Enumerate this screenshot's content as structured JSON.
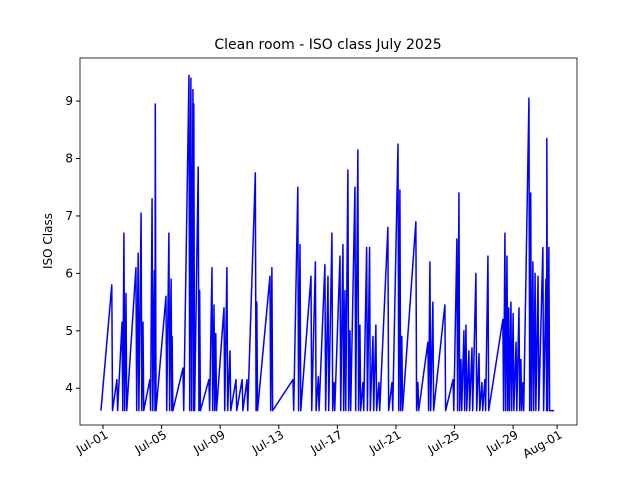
{
  "chart_data": {
    "type": "line",
    "title": "Clean room - ISO class July 2025",
    "y_label": "ISO Class",
    "xlim": [
      -1.57,
      32.36
    ],
    "ylim": [
      3.36,
      9.75
    ],
    "xticks": [
      {
        "value": 0,
        "label": "Jul-01"
      },
      {
        "value": 4,
        "label": "Jul-05"
      },
      {
        "value": 8,
        "label": "Jul-09"
      },
      {
        "value": 12,
        "label": "Jul-13"
      },
      {
        "value": 16,
        "label": "Jul-17"
      },
      {
        "value": 20,
        "label": "Jul-21"
      },
      {
        "value": 24,
        "label": "Jul-25"
      },
      {
        "value": 28,
        "label": "Jul-29"
      },
      {
        "value": 31,
        "label": "Aug-01"
      }
    ],
    "yticks": [
      4,
      5,
      6,
      7,
      8,
      9
    ],
    "grid": false,
    "x": [
      -0.14,
      0.6,
      0.65,
      0.95,
      1.0,
      1.3,
      1.35,
      1.43,
      1.48,
      1.57,
      1.62,
      2.25,
      2.3,
      2.4,
      2.45,
      2.6,
      2.65,
      2.73,
      2.78,
      3.2,
      3.25,
      3.35,
      3.4,
      3.5,
      3.55,
      3.57,
      3.62,
      4.3,
      4.35,
      4.5,
      4.55,
      4.65,
      4.7,
      4.72,
      4.77,
      5.46,
      5.51,
      5.87,
      5.92,
      6.0,
      6.05,
      6.14,
      6.19,
      6.2,
      6.25,
      6.5,
      6.55,
      6.6,
      6.65,
      7.23,
      7.28,
      7.44,
      7.49,
      7.58,
      7.63,
      7.7,
      7.75,
      8.26,
      8.31,
      8.46,
      8.51,
      8.67,
      8.72,
      9.08,
      9.13,
      9.5,
      9.55,
      9.83,
      9.88,
      10.4,
      10.45,
      10.5,
      10.55,
      11.4,
      11.45,
      11.53,
      11.58,
      12.97,
      13.02,
      13.3,
      13.35,
      13.45,
      13.5,
      14.2,
      14.25,
      14.5,
      14.55,
      14.7,
      14.75,
      15.15,
      15.2,
      15.36,
      15.41,
      15.63,
      15.68,
      15.77,
      15.82,
      16.18,
      16.23,
      16.38,
      16.43,
      16.52,
      16.57,
      16.72,
      16.77,
      16.86,
      16.91,
      17.2,
      17.25,
      17.4,
      17.45,
      17.54,
      17.59,
      17.75,
      17.8,
      18.0,
      18.05,
      18.2,
      18.25,
      18.43,
      18.48,
      18.63,
      18.68,
      18.84,
      18.89,
      19.45,
      19.5,
      19.73,
      19.78,
      20.14,
      20.19,
      20.27,
      20.32,
      20.4,
      20.45,
      21.36,
      21.41,
      21.5,
      21.55,
      22.18,
      22.23,
      22.32,
      22.37,
      22.52,
      22.57,
      23.34,
      23.39,
      23.9,
      23.95,
      24.16,
      24.21,
      24.3,
      24.35,
      24.44,
      24.49,
      24.64,
      24.69,
      24.78,
      24.83,
      24.98,
      25.03,
      25.19,
      25.24,
      25.46,
      25.51,
      25.67,
      25.72,
      25.87,
      25.92,
      26.07,
      26.12,
      26.28,
      26.33,
      27.3,
      27.35,
      27.44,
      27.49,
      27.58,
      27.63,
      27.7,
      27.75,
      27.85,
      27.9,
      28.0,
      28.05,
      28.2,
      28.25,
      28.4,
      28.45,
      28.53,
      28.58,
      28.67,
      28.72,
      29.08,
      29.13,
      29.2,
      29.25,
      29.35,
      29.4,
      29.5,
      29.55,
      29.7,
      29.75,
      30.03,
      30.08,
      30.24,
      30.29,
      30.3,
      30.35,
      30.44,
      30.49,
      30.8
    ],
    "series": [
      {
        "name": "ISO class",
        "color": "#0000ff",
        "values": [
          3.61,
          5.8,
          3.61,
          4.15,
          3.61,
          5.15,
          3.61,
          6.7,
          3.61,
          5.65,
          3.61,
          6.1,
          3.61,
          6.35,
          3.61,
          7.05,
          3.61,
          5.15,
          3.61,
          4.15,
          3.61,
          7.3,
          3.61,
          6.05,
          3.61,
          8.95,
          3.61,
          5.6,
          3.61,
          6.7,
          3.61,
          5.9,
          3.61,
          4.9,
          3.61,
          4.35,
          3.61,
          9.45,
          3.61,
          9.4,
          3.61,
          9.2,
          3.61,
          8.95,
          3.61,
          7.85,
          3.61,
          5.7,
          3.61,
          4.15,
          3.61,
          6.1,
          3.61,
          5.45,
          3.61,
          4.95,
          3.61,
          5.4,
          3.61,
          6.1,
          3.61,
          4.65,
          3.61,
          4.15,
          3.61,
          4.15,
          3.61,
          4.15,
          3.61,
          7.75,
          3.61,
          5.5,
          3.61,
          5.95,
          3.61,
          6.1,
          3.61,
          4.15,
          3.61,
          7.5,
          3.61,
          6.5,
          3.61,
          5.95,
          3.61,
          6.2,
          3.61,
          4.2,
          3.61,
          6.15,
          3.61,
          5.95,
          3.61,
          6.7,
          3.61,
          4.1,
          3.61,
          6.3,
          3.61,
          6.5,
          3.61,
          5.7,
          3.61,
          7.8,
          3.61,
          5.0,
          3.61,
          7.5,
          3.61,
          8.15,
          3.61,
          5.1,
          3.61,
          4.1,
          3.61,
          6.45,
          3.61,
          6.45,
          3.61,
          4.9,
          3.61,
          5.1,
          3.61,
          4.1,
          3.61,
          6.8,
          3.61,
          4.1,
          3.61,
          8.25,
          3.61,
          7.45,
          3.61,
          4.9,
          3.61,
          6.9,
          3.61,
          4.1,
          3.61,
          4.8,
          3.61,
          6.2,
          3.61,
          5.5,
          3.61,
          5.45,
          3.61,
          4.15,
          3.61,
          6.6,
          3.61,
          7.4,
          3.61,
          4.5,
          3.61,
          5.0,
          3.61,
          5.1,
          3.61,
          4.65,
          3.61,
          4.7,
          3.61,
          6.0,
          3.61,
          4.6,
          3.61,
          4.1,
          3.61,
          4.15,
          3.61,
          6.3,
          3.61,
          5.2,
          3.61,
          6.7,
          3.61,
          6.3,
          3.61,
          5.4,
          3.61,
          5.5,
          3.61,
          5.3,
          3.61,
          4.8,
          3.61,
          5.4,
          3.61,
          4.5,
          3.61,
          4.1,
          3.61,
          9.05,
          3.61,
          7.4,
          3.61,
          6.2,
          3.61,
          6.0,
          3.61,
          5.95,
          3.61,
          6.45,
          3.61,
          5.9,
          3.61,
          8.35,
          3.61,
          6.45,
          3.61,
          3.61
        ]
      }
    ]
  }
}
